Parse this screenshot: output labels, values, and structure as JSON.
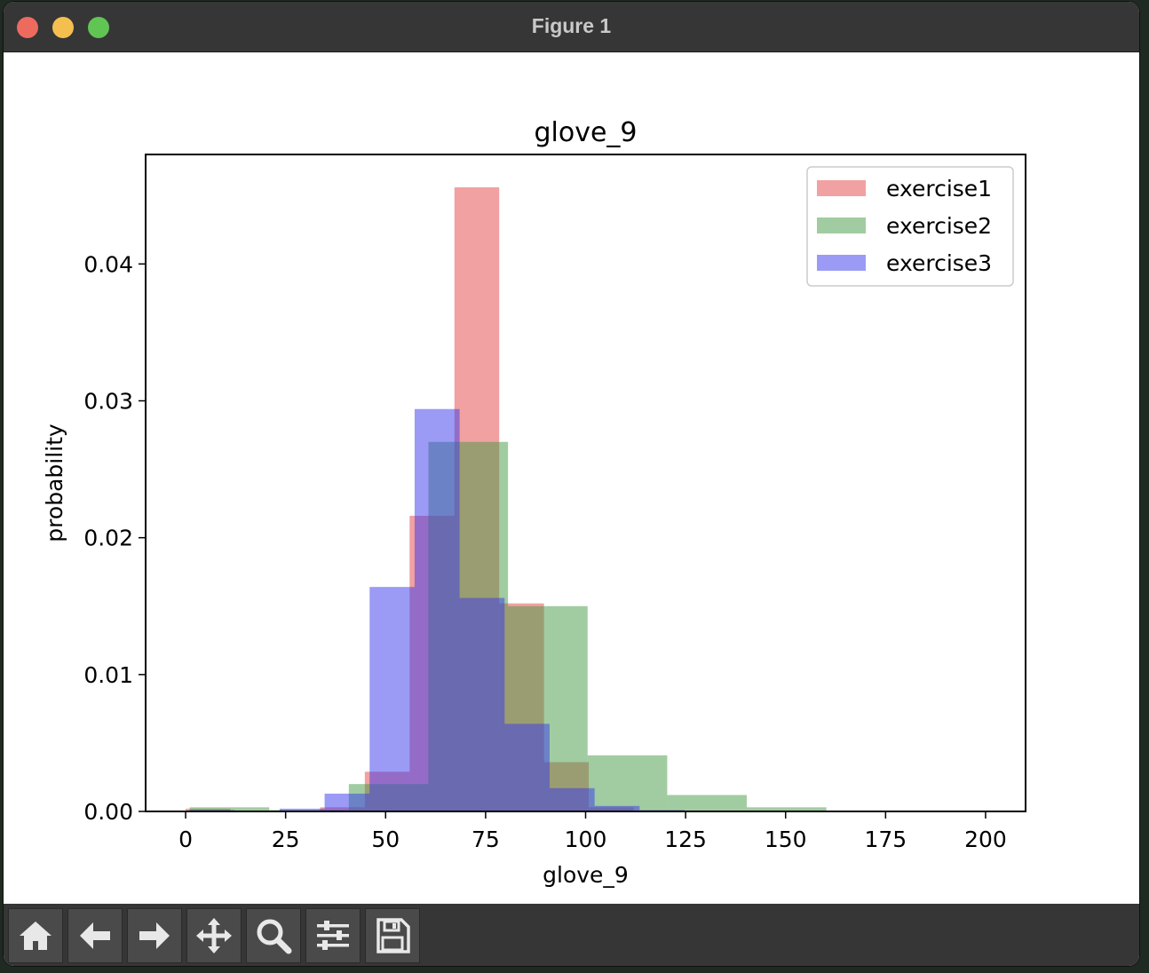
{
  "window": {
    "title": "Figure 1"
  },
  "toolbar": {
    "buttons": [
      {
        "name": "home-button",
        "icon": "home-icon"
      },
      {
        "name": "back-button",
        "icon": "arrow-left-icon"
      },
      {
        "name": "forward-button",
        "icon": "arrow-right-icon"
      },
      {
        "name": "pan-button",
        "icon": "move-icon"
      },
      {
        "name": "zoom-button",
        "icon": "magnifier-icon"
      },
      {
        "name": "configure-subplots-button",
        "icon": "sliders-icon"
      },
      {
        "name": "save-button",
        "icon": "floppy-disk-icon"
      }
    ]
  },
  "chart_data": {
    "type": "bar",
    "histogram": true,
    "title": "glove_9",
    "xlabel": "glove_9",
    "ylabel": "probability",
    "xlim": [
      -10,
      210
    ],
    "ylim": [
      0,
      0.048
    ],
    "xticks": [
      0,
      25,
      50,
      75,
      100,
      125,
      150,
      175,
      200
    ],
    "xtick_labels": [
      "0",
      "25",
      "50",
      "75",
      "100",
      "125",
      "150",
      "175",
      "200"
    ],
    "yticks": [
      0,
      0.01,
      0.02,
      0.03,
      0.04
    ],
    "ytick_labels": [
      "0.00",
      "0.01",
      "0.02",
      "0.03",
      "0.04"
    ],
    "legend_position": "top-right",
    "series": [
      {
        "name": "exercise1",
        "color": "#e34444",
        "alpha": 0.5,
        "bin_edges": [
          0,
          11.2,
          22.4,
          33.6,
          44.8,
          56,
          67.2,
          78.4,
          89.6,
          100.8,
          112
        ],
        "values": [
          0.0002,
          0,
          0,
          0.0003,
          0.0029,
          0.0216,
          0.0456,
          0.0152,
          0.0036,
          0.0003
        ]
      },
      {
        "name": "exercise2",
        "color": "#449944",
        "alpha": 0.5,
        "bin_edges": [
          1,
          20.9,
          40.8,
          60.7,
          80.6,
          100.5,
          120.4,
          140.3,
          160.2
        ],
        "values": [
          0.0003,
          0.0001,
          0.002,
          0.027,
          0.015,
          0.0041,
          0.0012,
          0.0003
        ]
      },
      {
        "name": "exercise3",
        "color": "#3737ee",
        "alpha": 0.5,
        "bin_edges": [
          1,
          12.25,
          23.5,
          34.75,
          46,
          57.25,
          68.5,
          79.75,
          91,
          102.25,
          113.5,
          124.75,
          136,
          147.25
        ],
        "values": [
          0.0001,
          0,
          0.0002,
          0.0013,
          0.0164,
          0.0294,
          0.0156,
          0.0064,
          0.0017,
          0.0004,
          0.0001,
          0,
          0
        ]
      }
    ]
  }
}
